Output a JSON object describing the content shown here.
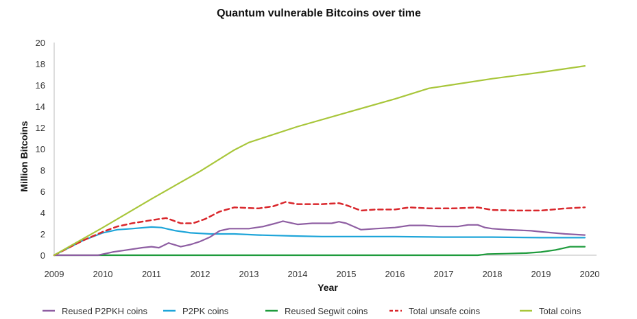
{
  "chart_data": {
    "type": "line",
    "title": "Quantum vulnerable Bitcoins over time",
    "xlabel": "Year",
    "ylabel": "Million Bitcoins",
    "xlim": [
      2009,
      2020
    ],
    "ylim": [
      0,
      20
    ],
    "x_ticks": [
      "2009",
      "2010",
      "2011",
      "2012",
      "2013",
      "2014",
      "2015",
      "2016",
      "2017",
      "2018",
      "2019",
      "2020"
    ],
    "y_ticks": [
      "0",
      "2",
      "4",
      "6",
      "8",
      "10",
      "12",
      "14",
      "16",
      "18",
      "20"
    ],
    "grid": false,
    "legend_position": "bottom",
    "series": [
      {
        "name": "Reused P2PKH coins",
        "color": "#8e5ea2",
        "dash": "solid",
        "points": [
          [
            2009,
            0
          ],
          [
            2009.9,
            0
          ],
          [
            2010.2,
            0.3
          ],
          [
            2010.5,
            0.5
          ],
          [
            2010.8,
            0.7
          ],
          [
            2011.0,
            0.8
          ],
          [
            2011.15,
            0.7
          ],
          [
            2011.35,
            1.15
          ],
          [
            2011.6,
            0.8
          ],
          [
            2011.8,
            1.0
          ],
          [
            2012.0,
            1.3
          ],
          [
            2012.2,
            1.7
          ],
          [
            2012.4,
            2.3
          ],
          [
            2012.6,
            2.5
          ],
          [
            2013.0,
            2.5
          ],
          [
            2013.3,
            2.7
          ],
          [
            2013.55,
            3.0
          ],
          [
            2013.7,
            3.2
          ],
          [
            2014.0,
            2.9
          ],
          [
            2014.3,
            3.0
          ],
          [
            2014.7,
            3.0
          ],
          [
            2014.85,
            3.15
          ],
          [
            2015.0,
            3.0
          ],
          [
            2015.3,
            2.4
          ],
          [
            2015.6,
            2.5
          ],
          [
            2016.0,
            2.6
          ],
          [
            2016.3,
            2.8
          ],
          [
            2016.6,
            2.8
          ],
          [
            2016.9,
            2.7
          ],
          [
            2017.3,
            2.7
          ],
          [
            2017.5,
            2.85
          ],
          [
            2017.7,
            2.85
          ],
          [
            2017.85,
            2.6
          ],
          [
            2018.0,
            2.5
          ],
          [
            2018.3,
            2.4
          ],
          [
            2018.8,
            2.3
          ],
          [
            2019.0,
            2.2
          ],
          [
            2019.5,
            2.0
          ],
          [
            2019.9,
            1.9
          ]
        ]
      },
      {
        "name": "P2PK coins",
        "color": "#1ea5d9",
        "dash": "solid",
        "points": [
          [
            2009,
            0
          ],
          [
            2009.3,
            0.7
          ],
          [
            2009.6,
            1.4
          ],
          [
            2010.0,
            2.1
          ],
          [
            2010.3,
            2.4
          ],
          [
            2010.6,
            2.5
          ],
          [
            2011.0,
            2.65
          ],
          [
            2011.2,
            2.6
          ],
          [
            2011.5,
            2.3
          ],
          [
            2011.8,
            2.1
          ],
          [
            2012.2,
            2.0
          ],
          [
            2012.7,
            2.0
          ],
          [
            2013.2,
            1.9
          ],
          [
            2014.0,
            1.8
          ],
          [
            2014.5,
            1.75
          ],
          [
            2016.0,
            1.75
          ],
          [
            2017.0,
            1.7
          ],
          [
            2018.0,
            1.7
          ],
          [
            2019.0,
            1.65
          ],
          [
            2019.9,
            1.65
          ]
        ]
      },
      {
        "name": "Reused Segwit coins",
        "color": "#1e9b3c",
        "dash": "solid",
        "points": [
          [
            2009,
            0
          ],
          [
            2017.7,
            0
          ],
          [
            2017.9,
            0.1
          ],
          [
            2018.3,
            0.15
          ],
          [
            2018.7,
            0.2
          ],
          [
            2019.0,
            0.3
          ],
          [
            2019.3,
            0.5
          ],
          [
            2019.6,
            0.8
          ],
          [
            2019.9,
            0.8
          ]
        ]
      },
      {
        "name": "Total unsafe coins",
        "color": "#d9262b",
        "dash": "dashed",
        "points": [
          [
            2009,
            0
          ],
          [
            2009.3,
            0.7
          ],
          [
            2009.6,
            1.4
          ],
          [
            2010.0,
            2.2
          ],
          [
            2010.3,
            2.7
          ],
          [
            2010.6,
            3.0
          ],
          [
            2011.0,
            3.3
          ],
          [
            2011.3,
            3.5
          ],
          [
            2011.6,
            3.0
          ],
          [
            2011.85,
            3.0
          ],
          [
            2012.1,
            3.4
          ],
          [
            2012.4,
            4.1
          ],
          [
            2012.7,
            4.5
          ],
          [
            2013.2,
            4.4
          ],
          [
            2013.5,
            4.6
          ],
          [
            2013.75,
            5.0
          ],
          [
            2014.0,
            4.8
          ],
          [
            2014.5,
            4.8
          ],
          [
            2014.85,
            4.9
          ],
          [
            2015.0,
            4.7
          ],
          [
            2015.3,
            4.2
          ],
          [
            2015.6,
            4.3
          ],
          [
            2016.0,
            4.3
          ],
          [
            2016.3,
            4.5
          ],
          [
            2016.7,
            4.4
          ],
          [
            2017.2,
            4.4
          ],
          [
            2017.7,
            4.5
          ],
          [
            2018.0,
            4.25
          ],
          [
            2018.5,
            4.2
          ],
          [
            2019.0,
            4.2
          ],
          [
            2019.5,
            4.4
          ],
          [
            2019.9,
            4.5
          ]
        ]
      },
      {
        "name": "Total coins",
        "color": "#a8c63a",
        "dash": "solid",
        "points": [
          [
            2009,
            0
          ],
          [
            2010.0,
            2.6
          ],
          [
            2011.0,
            5.3
          ],
          [
            2012.0,
            7.9
          ],
          [
            2012.7,
            9.9
          ],
          [
            2013.0,
            10.6
          ],
          [
            2014.0,
            12.1
          ],
          [
            2015.0,
            13.4
          ],
          [
            2016.0,
            14.7
          ],
          [
            2016.7,
            15.7
          ],
          [
            2017.0,
            15.9
          ],
          [
            2018.0,
            16.6
          ],
          [
            2019.0,
            17.2
          ],
          [
            2019.9,
            17.8
          ]
        ]
      }
    ]
  }
}
